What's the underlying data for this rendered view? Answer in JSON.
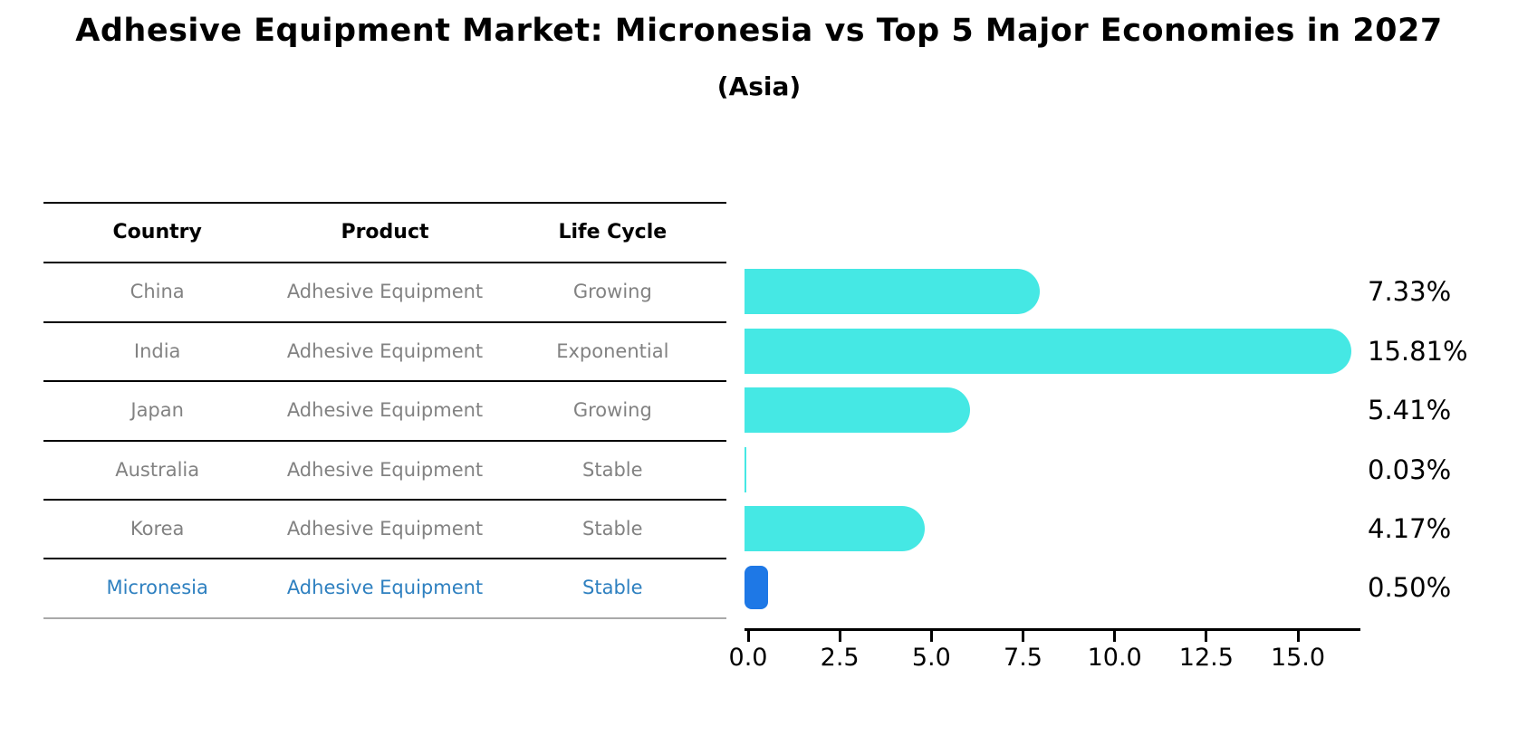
{
  "title": "Adhesive Equipment Market: Micronesia vs Top 5 Major Economies in 2027",
  "subtitle": "(Asia)",
  "table": {
    "headers": [
      "Country",
      "Product",
      "Life Cycle"
    ],
    "rows": [
      {
        "country": "China",
        "product": "Adhesive Equipment",
        "life_cycle": "Growing",
        "highlight": false
      },
      {
        "country": "India",
        "product": "Adhesive Equipment",
        "life_cycle": "Exponential",
        "highlight": false
      },
      {
        "country": "Japan",
        "product": "Adhesive Equipment",
        "life_cycle": "Growing",
        "highlight": false
      },
      {
        "country": "Australia",
        "product": "Adhesive Equipment",
        "life_cycle": "Stable",
        "highlight": false
      },
      {
        "country": "Korea",
        "product": "Adhesive Equipment",
        "life_cycle": "Stable",
        "highlight": false
      },
      {
        "country": "Micronesia",
        "product": "Adhesive Equipment",
        "life_cycle": "Stable",
        "highlight": true
      }
    ]
  },
  "chart_data": {
    "type": "bar",
    "orientation": "horizontal",
    "title": "Adhesive Equipment Market: Micronesia vs Top 5 Major Economies in 2027",
    "subtitle": "(Asia)",
    "categories": [
      "China",
      "India",
      "Japan",
      "Australia",
      "Korea",
      "Micronesia"
    ],
    "values": [
      7.33,
      15.81,
      5.41,
      0.03,
      4.17,
      0.5
    ],
    "labels": [
      "7.33%",
      "15.81%",
      "5.41%",
      "0.03%",
      "4.17%",
      "0.50%"
    ],
    "x_ticks": [
      "0.0",
      "2.5",
      "5.0",
      "7.5",
      "10.0",
      "12.5",
      "15.0"
    ],
    "xlim": [
      0,
      16.8
    ],
    "grid": false,
    "legend": false,
    "highlight_index": 5
  },
  "colors": {
    "bar": "#45E8E4",
    "highlight_bar": "#1E78E6",
    "highlight_text": "#2E80C0",
    "cell_text": "#828282",
    "line": "#000000",
    "bottom_line": "#A9A9A9",
    "label_text": "#000000"
  }
}
